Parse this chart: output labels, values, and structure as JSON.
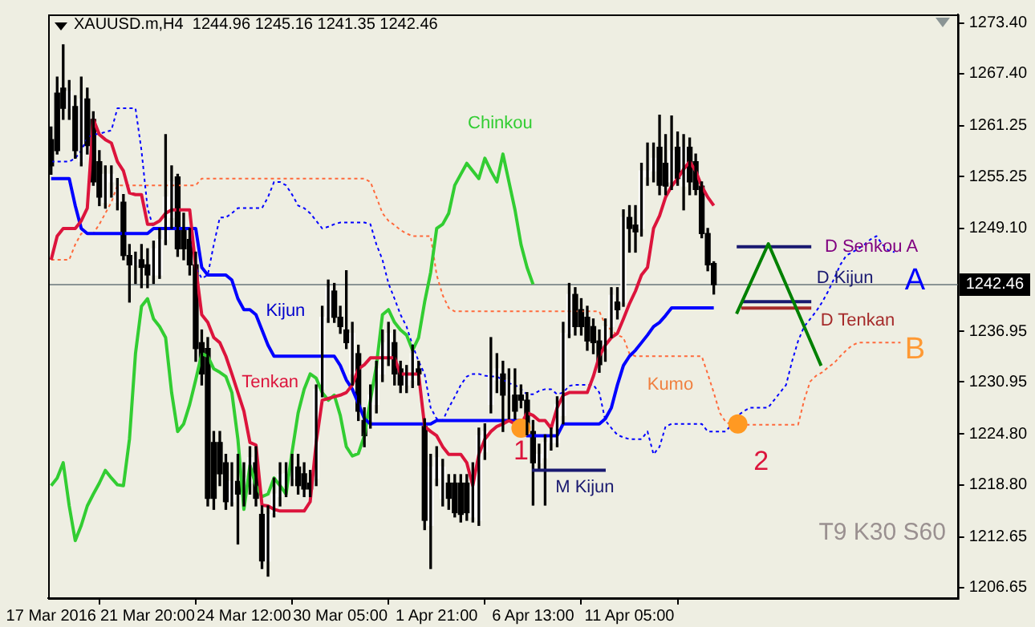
{
  "chart_data": {
    "type": "candlestick",
    "title": "XAUUSD.m,H4  1244.96 1245.16 1241.35 1242.46",
    "categories": [
      "17 Mar 2016",
      null,
      null,
      null,
      null,
      null,
      null,
      null,
      null,
      null,
      null,
      null,
      null,
      null,
      null,
      null,
      "21 Mar 20:00",
      null,
      null,
      null,
      null,
      null,
      null,
      null,
      null,
      null,
      null,
      null,
      null,
      null,
      null,
      null,
      "24 Mar 12:00",
      null,
      null,
      null,
      null,
      null,
      null,
      null,
      null,
      null,
      null,
      null,
      null,
      null,
      null,
      null,
      "30 Mar 05:00",
      null,
      null,
      null,
      null,
      null,
      null,
      null,
      null,
      null,
      null,
      null,
      null,
      null,
      null,
      null,
      "1 Apr 21:00",
      null,
      null,
      null,
      null,
      null,
      null,
      null,
      null,
      null,
      null,
      null,
      null,
      null,
      null,
      null,
      "6 Apr 13:00",
      null,
      null,
      null,
      null,
      null,
      null,
      null,
      null,
      null,
      null,
      null,
      null,
      null,
      null,
      null,
      "11 Apr 05:00",
      null,
      null,
      null,
      null,
      null,
      null,
      null,
      null,
      null,
      null,
      null,
      null,
      null,
      null,
      null,
      null,
      null,
      null,
      null,
      null,
      null,
      null,
      null,
      null,
      null,
      null,
      null,
      null,
      null,
      null,
      null,
      null,
      null,
      null,
      null,
      null,
      null,
      null,
      null,
      null,
      null,
      null,
      null,
      null,
      null,
      null,
      null,
      null,
      null,
      null,
      null,
      null,
      null,
      null
    ],
    "ohlc": [
      [
        1259.6,
        1261.1,
        1255.5,
        1256.5
      ],
      [
        1265.1,
        1267.0,
        1257.9,
        1258.3
      ],
      [
        1265.7,
        1270.8,
        1262.0,
        1263.3
      ],
      [
        1263.3,
        1266.6,
        1262.0,
        1265.3
      ],
      [
        1263.5,
        1264.8,
        1257.4,
        1258.3
      ],
      [
        1257.0,
        1267.0,
        1256.5,
        1264.4
      ],
      [
        1264.4,
        1265.7,
        1257.9,
        1258.9
      ],
      [
        1262.0,
        1262.9,
        1254.2,
        1254.6
      ],
      [
        1257.0,
        1258.3,
        1251.8,
        1252.8
      ],
      [
        1252.2,
        1256.5,
        1251.5,
        1255.5
      ],
      [
        1254.6,
        1256.5,
        1252.8,
        1255.5
      ],
      [
        1252.2,
        1255.0,
        1251.3,
        1254.1
      ],
      [
        1252.2,
        1253.1,
        1245.4,
        1245.9
      ],
      [
        1245.9,
        1247.2,
        1240.4,
        1244.8
      ],
      [
        1244.8,
        1246.3,
        1242.6,
        1245.4
      ],
      [
        1245.4,
        1247.2,
        1242.1,
        1244.5
      ],
      [
        1244.8,
        1246.7,
        1242.1,
        1243.6
      ],
      [
        1243.6,
        1247.6,
        1242.6,
        1246.7
      ],
      [
        1243.6,
        1249.1,
        1243.2,
        1247.8
      ],
      [
        1247.8,
        1260.2,
        1247.2,
        1252.8
      ],
      [
        1250.4,
        1256.5,
        1249.1,
        1254.6
      ],
      [
        1255.2,
        1255.5,
        1245.8,
        1246.7
      ],
      [
        1249.1,
        1250.9,
        1245.4,
        1246.7
      ],
      [
        1247.8,
        1249.1,
        1243.6,
        1244.8
      ],
      [
        1244.8,
        1246.3,
        1233.4,
        1234.9
      ],
      [
        1235.6,
        1237.1,
        1230.6,
        1231.9
      ],
      [
        1234.9,
        1236.2,
        1216.3,
        1217.2
      ],
      [
        1223.8,
        1225.1,
        1215.9,
        1217.2
      ],
      [
        1223.8,
        1225.1,
        1218.7,
        1220.1
      ],
      [
        1221.4,
        1222.4,
        1215.9,
        1216.8
      ],
      [
        1216.8,
        1221.4,
        1216.3,
        1219.2
      ],
      [
        1219.2,
        1222.4,
        1211.8,
        1217.7
      ],
      [
        1217.2,
        1221.4,
        1216.3,
        1219.6
      ],
      [
        1219.0,
        1223.3,
        1217.7,
        1222.0
      ],
      [
        1221.4,
        1223.3,
        1216.3,
        1217.2
      ],
      [
        1215.3,
        1216.3,
        1208.9,
        1209.8
      ],
      [
        1209.8,
        1216.3,
        1208.0,
        1215.3
      ],
      [
        1215.5,
        1219.6,
        1215.0,
        1217.7
      ],
      [
        1217.4,
        1221.4,
        1216.3,
        1220.0
      ],
      [
        1218.7,
        1221.4,
        1217.4,
        1220.1
      ],
      [
        1219.6,
        1222.4,
        1218.7,
        1221.1
      ],
      [
        1220.9,
        1222.4,
        1217.7,
        1218.7
      ],
      [
        1220.1,
        1221.4,
        1217.4,
        1218.3
      ],
      [
        1219.0,
        1220.5,
        1217.4,
        1218.3
      ],
      [
        1219.6,
        1230.6,
        1218.7,
        1230.1
      ],
      [
        1230.1,
        1239.9,
        1229.2,
        1238.6
      ],
      [
        1238.6,
        1243.0,
        1238.0,
        1242.1
      ],
      [
        1241.7,
        1242.6,
        1238.0,
        1238.6
      ],
      [
        1238.6,
        1239.9,
        1236.7,
        1237.5
      ],
      [
        1237.1,
        1244.1,
        1234.9,
        1235.6
      ],
      [
        1231.9,
        1238.0,
        1230.6,
        1236.7
      ],
      [
        1234.3,
        1235.3,
        1226.4,
        1227.5
      ],
      [
        1226.4,
        1227.9,
        1223.3,
        1224.6
      ],
      [
        1226.4,
        1230.6,
        1225.5,
        1229.4
      ],
      [
        1228.3,
        1233.4,
        1227.3,
        1232.5
      ],
      [
        1231.9,
        1237.1,
        1231.0,
        1235.6
      ],
      [
        1233.8,
        1238.0,
        1232.9,
        1236.7
      ],
      [
        1235.6,
        1237.1,
        1230.6,
        1231.9
      ],
      [
        1232.5,
        1233.4,
        1229.7,
        1230.6
      ],
      [
        1230.6,
        1232.9,
        1229.7,
        1231.9
      ],
      [
        1231.2,
        1235.3,
        1230.3,
        1234.3
      ],
      [
        1232.5,
        1233.4,
        1230.6,
        1231.9
      ],
      [
        1225.7,
        1226.6,
        1213.5,
        1214.6
      ],
      [
        1214.0,
        1222.4,
        1208.9,
        1220.9
      ],
      [
        1219.6,
        1223.3,
        1218.7,
        1222.0
      ],
      [
        1217.2,
        1221.8,
        1216.3,
        1220.9
      ],
      [
        1219.0,
        1220.0,
        1215.9,
        1217.2
      ],
      [
        1219.0,
        1220.0,
        1215.0,
        1215.5
      ],
      [
        1219.0,
        1220.0,
        1214.4,
        1215.3
      ],
      [
        1219.0,
        1220.0,
        1214.6,
        1215.5
      ],
      [
        1215.0,
        1221.4,
        1214.4,
        1220.1
      ],
      [
        1214.6,
        1225.5,
        1214.0,
        1224.6
      ],
      [
        1222.7,
        1226.0,
        1221.8,
        1225.1
      ],
      [
        1228.3,
        1236.2,
        1227.3,
        1231.9
      ],
      [
        1231.2,
        1234.3,
        1229.7,
        1232.5
      ],
      [
        1231.9,
        1233.4,
        1225.1,
        1229.4
      ],
      [
        1229.4,
        1232.5,
        1226.6,
        1231.2
      ],
      [
        1229.4,
        1232.5,
        1226.6,
        1227.5
      ],
      [
        1229.4,
        1230.6,
        1227.9,
        1228.8
      ],
      [
        1228.8,
        1229.7,
        1224.7,
        1225.7
      ],
      [
        1225.1,
        1226.4,
        1216.4,
        1221.4
      ],
      [
        1221.4,
        1223.6,
        1220.5,
        1222.4
      ],
      [
        1222.0,
        1224.7,
        1216.4,
        1223.8
      ],
      [
        1223.8,
        1225.5,
        1222.9,
        1224.6
      ],
      [
        1223.8,
        1229.2,
        1223.3,
        1228.3
      ],
      [
        1227.0,
        1238.0,
        1226.0,
        1236.7
      ],
      [
        1236.7,
        1242.6,
        1236.2,
        1241.3
      ],
      [
        1241.3,
        1242.1,
        1236.5,
        1237.5
      ],
      [
        1239.5,
        1240.8,
        1236.5,
        1237.5
      ],
      [
        1238.6,
        1239.9,
        1234.7,
        1235.8
      ],
      [
        1237.5,
        1238.4,
        1234.3,
        1235.6
      ],
      [
        1235.8,
        1237.1,
        1232.1,
        1233.0
      ],
      [
        1234.9,
        1238.4,
        1233.4,
        1237.5
      ],
      [
        1237.5,
        1242.1,
        1236.2,
        1241.2
      ],
      [
        1240.4,
        1242.1,
        1238.4,
        1239.5
      ],
      [
        1240.4,
        1251.3,
        1239.9,
        1250.4
      ],
      [
        1250.4,
        1251.8,
        1246.3,
        1249.1
      ],
      [
        1249.5,
        1251.8,
        1246.3,
        1248.7
      ],
      [
        1249.1,
        1256.8,
        1248.2,
        1255.9
      ],
      [
        1255.2,
        1259.2,
        1254.2,
        1255.9
      ],
      [
        1255.9,
        1259.2,
        1254.6,
        1257.4
      ],
      [
        1258.7,
        1262.5,
        1253.1,
        1254.2
      ],
      [
        1256.8,
        1260.2,
        1253.1,
        1254.1
      ],
      [
        1254.6,
        1262.4,
        1253.7,
        1258.3
      ],
      [
        1258.7,
        1260.5,
        1254.2,
        1255.0
      ],
      [
        1254.1,
        1260.2,
        1251.3,
        1258.7
      ],
      [
        1258.7,
        1259.8,
        1253.1,
        1254.6
      ],
      [
        1257.0,
        1257.9,
        1253.1,
        1253.7
      ],
      [
        1254.1,
        1254.6,
        1248.0,
        1248.5
      ],
      [
        1248.5,
        1249.1,
        1244.1,
        1244.8
      ],
      [
        1244.96,
        1245.16,
        1241.35,
        1242.46
      ],
      null,
      null,
      null,
      null,
      null,
      null,
      null,
      null,
      null,
      null,
      null,
      null,
      null,
      null,
      null,
      null,
      null,
      null,
      null,
      null,
      null,
      null,
      null,
      null,
      null,
      null,
      null,
      null,
      null,
      null,
      null,
      null,
      null,
      null,
      null,
      null,
      null,
      null,
      null,
      null
    ],
    "series": [
      {
        "type": "line",
        "color": "#dc143c",
        "values": [
          1245.4,
          1248.2,
          1249.1,
          1249.1,
          1249.1,
          1250.0,
          1251.5,
          1262.0,
          1260.2,
          1259.6,
          1259.2,
          1257.0,
          1255.9,
          1253.3,
          1253.1,
          1253.1,
          1249.6,
          1249.6,
          1250.0,
          1250.9,
          1251.3,
          1251.3,
          1251.3,
          1251.3,
          1244.5,
          1238.9,
          1238.0,
          1236.2,
          1235.6,
          1234.0,
          1231.9,
          1229.7,
          1227.5,
          1223.8,
          1223.5,
          1216.4,
          1216.3,
          1215.9,
          1215.7,
          1215.7,
          1215.7,
          1215.7,
          1215.7,
          1216.8,
          1223.8,
          1228.8,
          1229.0,
          1229.2,
          1229.4,
          1229.7,
          1230.6,
          1232.5,
          1233.0,
          1233.8,
          1233.8,
          1233.8,
          1233.8,
          1233.8,
          1231.9,
          1231.9,
          1231.9,
          1231.9,
          1225.7,
          1225.1,
          1224.6,
          1223.3,
          1222.4,
          1222.4,
          1222.4,
          1221.4,
          1218.7,
          1222.4,
          1224.2,
          1225.1,
          1225.7,
          1226.0,
          1226.4,
          1226.0,
          1225.9,
          1227.3,
          1227.0,
          1226.4,
          1226.4,
          1225.5,
          1227.9,
          1229.4,
          1229.7,
          1229.7,
          1229.7,
          1229.7,
          1231.6,
          1234.0,
          1235.3,
          1236.2,
          1236.7,
          1238.4,
          1240.2,
          1241.7,
          1243.6,
          1244.5,
          1249.1,
          1250.6,
          1252.8,
          1254.1,
          1255.0,
          1256.1,
          1257.0,
          1255.9,
          1254.1,
          1252.8,
          1251.8,
          null,
          null,
          null,
          null,
          null,
          null,
          null,
          null,
          null,
          null,
          null,
          null,
          null,
          null,
          null,
          null,
          null,
          null,
          null,
          null,
          null,
          null,
          null,
          null,
          null,
          null,
          null,
          null,
          null,
          null,
          null,
          null,
          null,
          null,
          null,
          null,
          null,
          null,
          null,
          null
        ]
      },
      {
        "type": "line",
        "color": "#0000ff",
        "values": [
          1255.0,
          1255.0,
          1255.0,
          1255.0,
          1251.8,
          1249.1,
          1248.5,
          1248.5,
          1248.5,
          1248.5,
          1248.5,
          1248.5,
          1248.5,
          1248.5,
          1248.5,
          1248.5,
          1248.5,
          1249.1,
          1249.1,
          1249.1,
          1249.1,
          1249.1,
          1249.1,
          1249.1,
          1249.1,
          1244.5,
          1243.6,
          1243.6,
          1243.6,
          1243.6,
          1243.0,
          1240.8,
          1239.5,
          1239.5,
          1238.9,
          1237.1,
          1235.3,
          1234.0,
          1234.0,
          1234.0,
          1234.0,
          1234.0,
          1234.0,
          1234.0,
          1234.0,
          1234.0,
          1234.0,
          1234.0,
          1232.9,
          1231.2,
          1230.1,
          1228.4,
          1226.6,
          1226.0,
          1226.0,
          1226.0,
          1226.0,
          1226.0,
          1226.0,
          1226.0,
          1226.0,
          1226.0,
          1226.0,
          1226.0,
          1226.4,
          1226.4,
          1226.4,
          1226.4,
          1226.4,
          1226.4,
          1226.4,
          1226.4,
          1226.4,
          1226.4,
          1226.4,
          1226.4,
          1226.4,
          1226.4,
          1226.4,
          1224.6,
          1224.6,
          1224.6,
          1224.6,
          1224.6,
          1224.6,
          1226.0,
          1226.0,
          1226.0,
          1226.0,
          1226.0,
          1226.0,
          1226.0,
          1226.6,
          1227.9,
          1230.6,
          1232.9,
          1234.0,
          1234.7,
          1235.6,
          1236.5,
          1237.5,
          1238.0,
          1238.8,
          1239.7,
          1239.7,
          1239.7,
          1239.7,
          1239.7,
          1239.7,
          1239.7,
          1239.7,
          null,
          null,
          null,
          null,
          null,
          null,
          null,
          null,
          null,
          null,
          null,
          null,
          null,
          null,
          null,
          null,
          null,
          null,
          null,
          null,
          null,
          null,
          null,
          null,
          null,
          null,
          null,
          null,
          null,
          null,
          null,
          null,
          null,
          null,
          null,
          null,
          null,
          null,
          null,
          null
        ]
      },
      {
        "type": "line",
        "color": "#32cd32",
        "values": [
          1218.7,
          1219.6,
          1221.4,
          1216.3,
          1212.2,
          1214.0,
          1216.3,
          1217.7,
          1219.0,
          1220.5,
          1219.6,
          1218.8,
          1218.7,
          1224.2,
          1234.3,
          1239.9,
          1240.8,
          1238.4,
          1237.5,
          1236.2,
          1229.7,
          1225.1,
          1226.0,
          1228.3,
          1231.2,
          1234.3,
          1234.0,
          1232.5,
          1232.1,
          1231.6,
          1229.7,
          1224.2,
          1215.9,
          1221.1,
          1218.7,
          1217.4,
          1217.7,
          1219.6,
          1218.7,
          1217.7,
          1222.7,
          1227.3,
          1230.1,
          1231.9,
          1231.4,
          1229.7,
          1228.8,
          1229.4,
          1227.0,
          1223.3,
          1222.2,
          1222.5,
          1224.6,
          1228.8,
          1232.9,
          1238.9,
          1239.5,
          1238.0,
          1237.1,
          1236.5,
          1234.7,
          1236.2,
          1240.4,
          1243.9,
          1249.1,
          1249.6,
          1250.9,
          1254.2,
          1255.5,
          1256.8,
          1255.9,
          1255.0,
          1257.4,
          1255.9,
          1254.6,
          1257.9,
          1254.6,
          1251.3,
          1247.2,
          1244.5,
          1242.5,
          null,
          null,
          null,
          null,
          null,
          null,
          null,
          null,
          null,
          null,
          null,
          null,
          null,
          null,
          null,
          null,
          null,
          null,
          null,
          null,
          null,
          null,
          null,
          null,
          null,
          null,
          null,
          null,
          null,
          null,
          null,
          null,
          null,
          null,
          null,
          null,
          null,
          null,
          null,
          null,
          null,
          null,
          null,
          null,
          null,
          null,
          null,
          null,
          null,
          null,
          null,
          null,
          null,
          null,
          null,
          null,
          null,
          null,
          null,
          null,
          null,
          null,
          null,
          null,
          null,
          null,
          null,
          null,
          null,
          null
        ]
      },
      {
        "type": "line",
        "color": "#0000ff",
        "line_style": "dotted",
        "values": [
          1257.0,
          1257.0,
          1257.0,
          1257.0,
          1257.4,
          1258.3,
          1259.8,
          1260.2,
          1260.3,
          1260.5,
          1260.7,
          1263.3,
          1263.3,
          1263.3,
          1263.3,
          1258.3,
          1251.5,
          1249.1,
          1249.1,
          1249.1,
          1249.1,
          1249.1,
          1249.1,
          1249.1,
          1244.5,
          1243.2,
          1243.6,
          1247.2,
          1250.4,
          1250.4,
          1250.9,
          1251.5,
          1251.5,
          1251.5,
          1251.5,
          1251.5,
          1252.8,
          1254.6,
          1254.6,
          1254.2,
          1253.1,
          1251.8,
          1251.5,
          1250.9,
          1250.0,
          1249.1,
          1249.3,
          1249.6,
          1249.8,
          1249.8,
          1249.8,
          1249.8,
          1249.8,
          1249.6,
          1247.2,
          1245.4,
          1242.6,
          1240.8,
          1238.9,
          1237.5,
          1235.3,
          1233.4,
          1231.9,
          1227.9,
          1226.6,
          1226.4,
          1227.9,
          1229.2,
          1230.6,
          1231.6,
          1231.9,
          1231.9,
          1231.7,
          1231.6,
          1231.6,
          1231.2,
          1230.8,
          1230.6,
          1230.1,
          1229.5,
          1229.5,
          1229.9,
          1230.1,
          1230.1,
          1229.5,
          1229.7,
          1230.5,
          1230.6,
          1230.6,
          1230.6,
          1230.6,
          1229.7,
          1226.4,
          1225.5,
          1224.7,
          1224.4,
          1224.2,
          1224.2,
          1224.2,
          1225.1,
          1222.4,
          1223.3,
          1225.7,
          1226.0,
          1226.0,
          1226.0,
          1226.0,
          1226.0,
          1226.0,
          1225.1,
          1225.1,
          1225.1,
          1225.1,
          1226.0,
          1227.0,
          1227.5,
          1227.9,
          1227.9,
          1227.9,
          1227.9,
          1228.8,
          1229.7,
          1230.6,
          1233.4,
          1235.8,
          1237.5,
          1238.4,
          1239.3,
          1240.4,
          1241.7,
          1243.2,
          1244.8,
          1245.9,
          1246.3,
          1246.7,
          1247.2,
          1247.8,
          1248.2,
          1247.2,
          1246.5,
          1246.3,
          null,
          null,
          null,
          null,
          null,
          null,
          null,
          null,
          null,
          null
        ]
      },
      {
        "type": "line",
        "color": "#ff6a3c",
        "line_style": "dotted",
        "values": [
          1245.4,
          1245.4,
          1245.4,
          1245.4,
          1247.2,
          1248.5,
          1248.5,
          1248.5,
          1249.6,
          1250.9,
          1252.2,
          1254.2,
          1254.2,
          1254.2,
          1254.2,
          1254.2,
          1254.2,
          1254.2,
          1254.2,
          1254.2,
          1254.2,
          1254.2,
          1254.2,
          1254.2,
          1254.2,
          1255.0,
          1255.0,
          1255.0,
          1255.0,
          1255.0,
          1255.0,
          1255.0,
          1255.0,
          1255.0,
          1255.0,
          1255.0,
          1255.0,
          1255.0,
          1255.0,
          1255.0,
          1255.0,
          1255.0,
          1255.0,
          1255.0,
          1255.0,
          1255.0,
          1255.0,
          1255.0,
          1255.0,
          1255.0,
          1255.0,
          1255.0,
          1255.0,
          1254.6,
          1252.8,
          1250.9,
          1250.0,
          1249.5,
          1248.9,
          1248.5,
          1248.2,
          1248.2,
          1248.2,
          1248.2,
          1243.6,
          1241.2,
          1239.7,
          1239.3,
          1239.3,
          1239.3,
          1239.3,
          1239.3,
          1239.3,
          1239.3,
          1239.3,
          1239.3,
          1239.3,
          1239.3,
          1239.3,
          1239.3,
          1239.3,
          1239.3,
          1239.3,
          1239.3,
          1239.3,
          1239.3,
          1239.3,
          1239.3,
          1239.3,
          1239.3,
          1239.3,
          1239.3,
          1237.7,
          1237.1,
          1236.5,
          1236.2,
          1234.3,
          1234.0,
          1234.0,
          1234.0,
          1234.0,
          1234.0,
          1234.0,
          1234.0,
          1234.0,
          1234.0,
          1234.0,
          1234.0,
          1234.0,
          1231.9,
          1229.7,
          1227.3,
          1226.2,
          1225.9,
          1225.9,
          1225.9,
          1225.9,
          1225.9,
          1225.9,
          1225.9,
          1225.9,
          1225.9,
          1225.9,
          1225.9,
          1225.9,
          1228.8,
          1231.0,
          1231.7,
          1232.1,
          1232.7,
          1233.2,
          1234.0,
          1234.7,
          1235.3,
          1235.6,
          1235.6,
          1235.6,
          1235.6,
          1235.6,
          1235.6,
          1235.6,
          1235.6,
          null,
          null,
          null,
          null,
          null,
          null,
          null,
          null,
          null
        ]
      },
      {
        "type": "scatter",
        "color": "#ff9922",
        "marker": "circle",
        "values": [
          null,
          null,
          null,
          null,
          null,
          null,
          null,
          null,
          null,
          null,
          null,
          null,
          null,
          null,
          null,
          null,
          null,
          null,
          null,
          null,
          null,
          null,
          null,
          null,
          null,
          null,
          null,
          null,
          null,
          null,
          null,
          null,
          null,
          null,
          null,
          null,
          null,
          null,
          null,
          null,
          null,
          null,
          null,
          null,
          null,
          null,
          null,
          null,
          null,
          null,
          null,
          null,
          null,
          null,
          null,
          null,
          null,
          null,
          null,
          null,
          null,
          null,
          null,
          null,
          null,
          null,
          null,
          null,
          null,
          null,
          null,
          null,
          null,
          null,
          null,
          null,
          null,
          null,
          1225.5,
          null,
          null,
          null,
          null,
          null,
          null,
          null,
          null,
          null,
          null,
          null,
          null,
          null,
          null,
          null,
          null,
          null,
          null,
          null,
          null,
          null,
          null,
          null,
          null,
          null,
          null,
          null,
          null,
          null,
          null,
          null,
          null,
          null,
          null,
          null,
          1226.0,
          null,
          null,
          null,
          null,
          null,
          null,
          null,
          null,
          null,
          null,
          null,
          null,
          null,
          null,
          null,
          null,
          null,
          null,
          null,
          null,
          null,
          null,
          null,
          null,
          null,
          null,
          null,
          null,
          null,
          null,
          null,
          null,
          null,
          null,
          null,
          null
        ]
      }
    ],
    "ylim": [
      1205.4,
      1274.4
    ],
    "yticks": [
      {
        "value": 1206.65,
        "label": "1206.65"
      },
      {
        "value": 1212.65,
        "label": "1212.65"
      },
      {
        "value": 1218.8,
        "label": "1218.80"
      },
      {
        "value": 1224.8,
        "label": "1224.80"
      },
      {
        "value": 1230.95,
        "label": "1230.95"
      },
      {
        "value": 1236.95,
        "label": "1236.95"
      },
      {
        "value": 1249.1,
        "label": "1249.10"
      },
      {
        "value": 1255.25,
        "label": "1255.25"
      },
      {
        "value": 1261.25,
        "label": "1261.25"
      },
      {
        "value": 1267.4,
        "label": "1267.40"
      },
      {
        "value": 1273.4,
        "label": "1273.40"
      }
    ],
    "ref_lines": [
      {
        "axis": "y",
        "value": 1242.46,
        "label": "1242.46",
        "color": "#8a9494"
      }
    ],
    "annotations": [
      "Chinkou",
      "Kijun",
      "Tenkan",
      "Kumo",
      "1",
      "2",
      "M Kijun",
      "D Senkou A",
      "D Kijun",
      "D Tenkan",
      "A",
      "B",
      "T9 K30 S60"
    ]
  }
}
